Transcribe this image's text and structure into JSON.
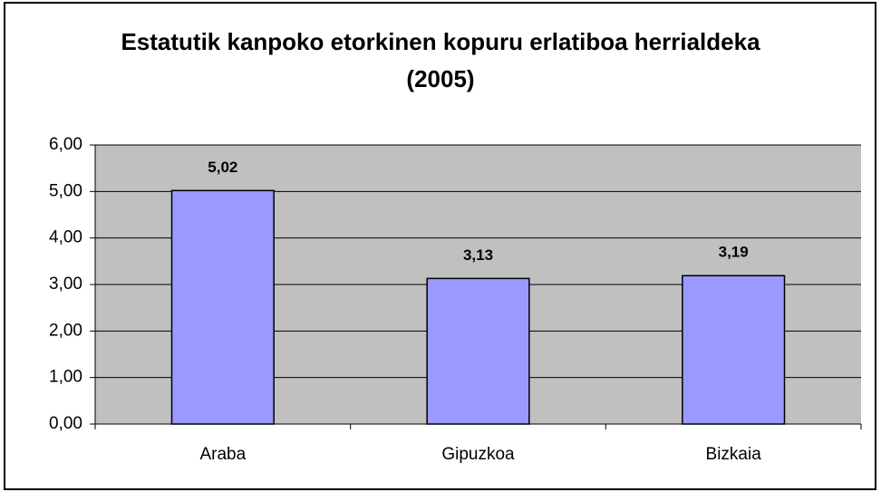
{
  "chart_data": {
    "type": "bar",
    "title": "Estatutik kanpoko etorkinen kopuru erlatiboa herrialdeka (2005)",
    "categories": [
      "Araba",
      "Gipuzkoa",
      "Bizkaia"
    ],
    "values": [
      5.02,
      3.13,
      3.19
    ],
    "value_labels": [
      "5,02",
      "3,13",
      "3,19"
    ],
    "color": "#9999ff",
    "ylim": [
      0,
      6
    ],
    "yticks": [
      {
        "value": 0,
        "label": "0,00"
      },
      {
        "value": 1,
        "label": "1,00"
      },
      {
        "value": 2,
        "label": "2,00"
      },
      {
        "value": 3,
        "label": "3,00"
      },
      {
        "value": 4,
        "label": "4,00"
      },
      {
        "value": 5,
        "label": "5,00"
      },
      {
        "value": 6,
        "label": "6,00"
      }
    ],
    "grid": true
  }
}
